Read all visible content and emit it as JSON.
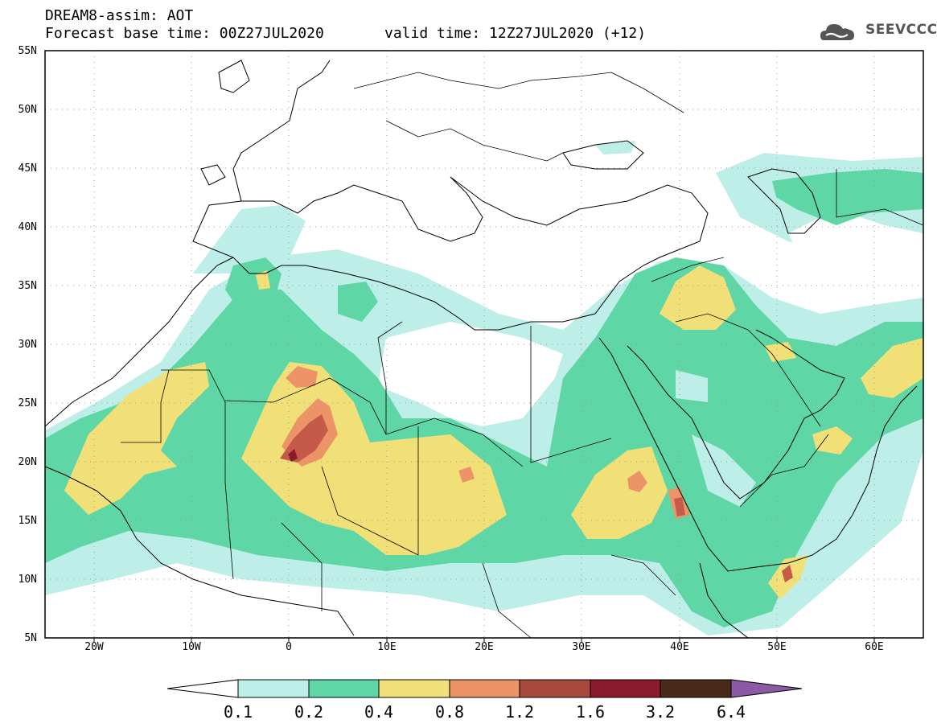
{
  "header": {
    "title_line1": "DREAM8-assim: AOT",
    "title_line2": "Forecast base time: 00Z27JUL2020",
    "valid_time": "valid time: 12Z27JUL2020 (+12)",
    "logo_text": "SEEVCCC"
  },
  "map": {
    "lat_labels": [
      "55N",
      "50N",
      "45N",
      "40N",
      "35N",
      "30N",
      "25N",
      "20N",
      "15N",
      "10N",
      "5N"
    ],
    "lon_labels": [
      "20W",
      "10W",
      "0",
      "10E",
      "20E",
      "30E",
      "40E",
      "50E",
      "60E"
    ],
    "colors": {
      "c01": "#bdeee8",
      "c02": "#5fd6a6",
      "c04": "#f1e078",
      "c08": "#ec9468",
      "c12": "#c55a48",
      "c16": "#8b1a2e",
      "c32": "#4a2a18",
      "c64": "#8a5aa6"
    }
  },
  "colorbar": {
    "thresholds": [
      "0.1",
      "0.2",
      "0.4",
      "0.8",
      "1.2",
      "1.6",
      "3.2",
      "6.4"
    ]
  }
}
